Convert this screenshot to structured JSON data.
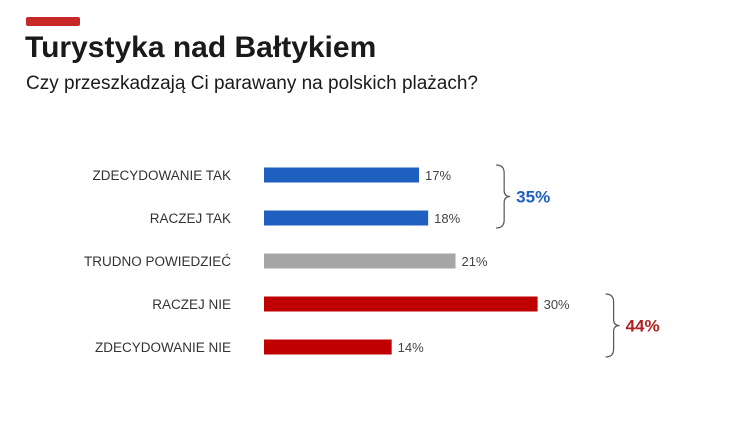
{
  "header": {
    "title": "Turystyka nad Bałtykiem",
    "subtitle": "Czy przeszkadzają Ci parawany na polskich plażach?",
    "accent_color": "#c62828"
  },
  "chart_data": {
    "type": "bar",
    "orientation": "horizontal",
    "categories": [
      "ZDECYDOWANIE TAK",
      "RACZEJ TAK",
      "TRUDNO POWIEDZIEĆ",
      "RACZEJ NIE",
      "ZDECYDOWANIE NIE"
    ],
    "values": [
      17,
      18,
      21,
      30,
      14
    ],
    "value_labels": [
      "17%",
      "18%",
      "21%",
      "30%",
      "14%"
    ],
    "colors": [
      "#1f5fbf",
      "#1f5fbf",
      "#a6a6a6",
      "#c00000",
      "#c00000"
    ],
    "unit": "%",
    "groups": [
      {
        "from": 0,
        "to": 1,
        "total_label": "35%",
        "color": "#1f5fbf"
      },
      {
        "from": 3,
        "to": 4,
        "total_label": "44%",
        "color": "#b02020"
      }
    ],
    "grid": false,
    "legend": "none"
  }
}
